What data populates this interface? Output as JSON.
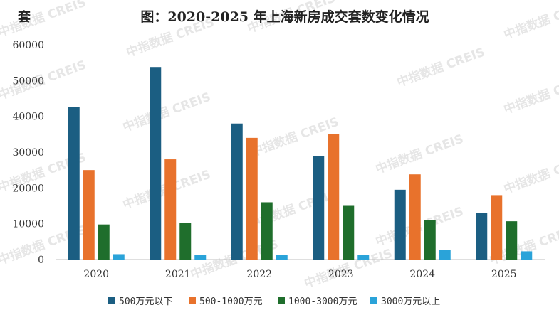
{
  "chart_data": {
    "type": "bar",
    "title": "图：2020-2025 年上海新房成交套数变化情况",
    "ylabel": "套",
    "xlabel": "",
    "categories": [
      "2020",
      "2021",
      "2022",
      "2023",
      "2024",
      "2025"
    ],
    "ylim": [
      0,
      60000
    ],
    "yticks": [
      "0",
      "10000",
      "20000",
      "30000",
      "40000",
      "50000",
      "60000"
    ],
    "grid": false,
    "legend_position": "bottom",
    "series": [
      {
        "name": "500万元以下",
        "color": "#1b5e82",
        "values": [
          42600,
          53800,
          38000,
          29000,
          19500,
          13000
        ]
      },
      {
        "name": "500-1000万元",
        "color": "#e8722c",
        "values": [
          25000,
          28000,
          34000,
          35000,
          23800,
          18000
        ]
      },
      {
        "name": "1000-3000万元",
        "color": "#1f6e2c",
        "values": [
          9800,
          10300,
          16000,
          15000,
          11000,
          10700
        ]
      },
      {
        "name": "3000万元以上",
        "color": "#2aa3d9",
        "values": [
          1500,
          1300,
          1300,
          1300,
          2700,
          2300
        ]
      }
    ]
  },
  "watermark": "中指数据 CREIS"
}
